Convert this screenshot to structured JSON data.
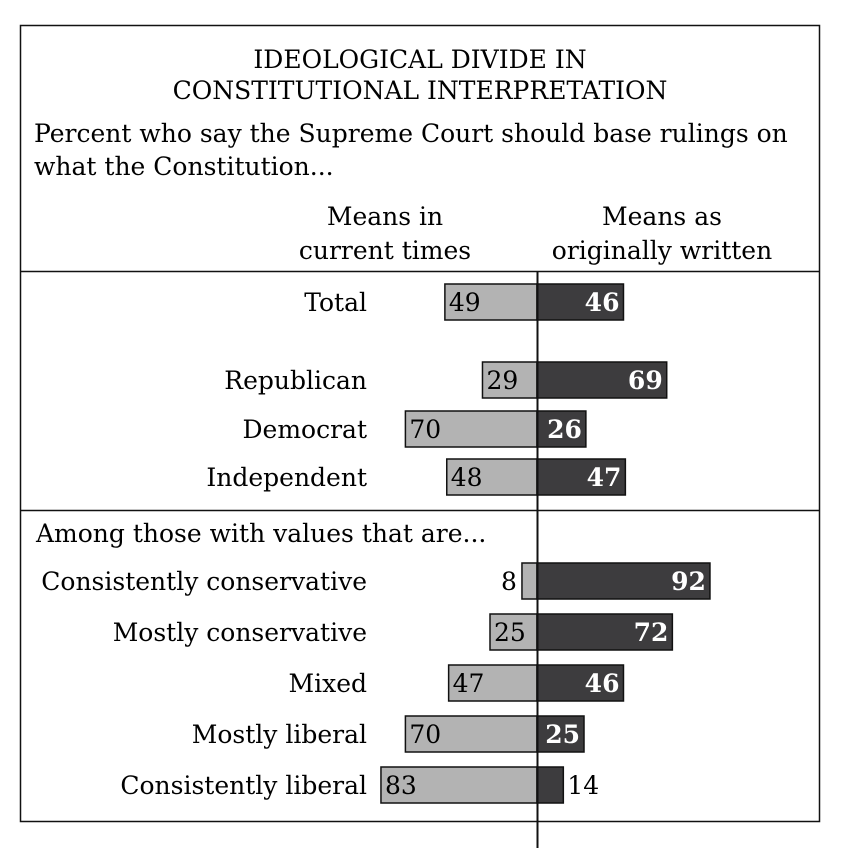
{
  "chart_data": {
    "type": "bar",
    "orientation": "horizontal-diverging",
    "title_lines": [
      "IDEOLOGICAL DIVIDE IN",
      "CONSTITUTIONAL INTERPRETATION"
    ],
    "subtitle_lines": [
      "Percent who say the Supreme Court should base rulings on",
      "what the Constitution..."
    ],
    "series": [
      {
        "name_lines": [
          "Means in",
          "current times"
        ],
        "color": "#b3b3b3",
        "side": "left",
        "values": [
          49,
          29,
          70,
          48,
          8,
          25,
          47,
          70,
          83
        ]
      },
      {
        "name_lines": [
          "Means as",
          "originally written"
        ],
        "color": "#3d3c3e",
        "side": "right",
        "values": [
          46,
          69,
          26,
          47,
          92,
          72,
          46,
          25,
          14
        ]
      }
    ],
    "categories": [
      "Total",
      "Republican",
      "Democrat",
      "Independent",
      "Consistently conservative",
      "Mostly conservative",
      "Mixed",
      "Mostly liberal",
      "Consistently liberal"
    ],
    "section_label": "Among those with values that are...",
    "xlim": [
      0,
      100
    ]
  }
}
